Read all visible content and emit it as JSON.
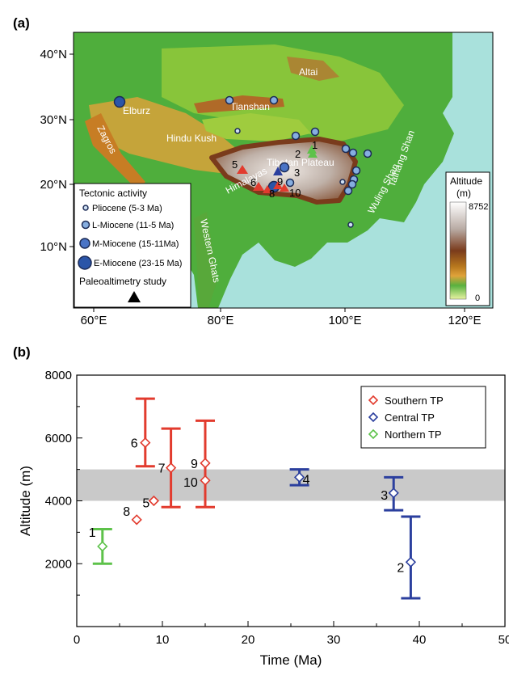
{
  "panel_a": {
    "label": "(a)",
    "lat_ticks": [
      "40°N",
      "30°N",
      "20°N",
      "10°N"
    ],
    "lon_ticks": [
      "60°E",
      "80°E",
      "100°E",
      "120°E"
    ],
    "place_names": [
      {
        "text": "Elburz"
      },
      {
        "text": "Zagros"
      },
      {
        "text": "Hindu Kush"
      },
      {
        "text": "Tianshan"
      },
      {
        "text": "Altai"
      },
      {
        "text": "Tibetan Plateau"
      },
      {
        "text": "Himalayas"
      },
      {
        "text": "Western Ghats"
      },
      {
        "text": "Wuling Shan"
      },
      {
        "text": "Taihang Shan"
      }
    ],
    "site_numbers": [
      "1",
      "2",
      "3",
      "5",
      "6",
      "9",
      "8",
      "10"
    ],
    "legend": {
      "title": "Tectonic activity",
      "items": [
        "Pliocene (5-3 Ma)",
        "L-Miocene (11-5 Ma)",
        "M-Miocene (15-11Ma)",
        "E-Miocene (23-15 Ma)"
      ],
      "paleo_label": "Paleoaltimetry study"
    },
    "colorbar": {
      "title": "Altitude",
      "unit": "(m)",
      "max": "8752",
      "min": "0"
    }
  },
  "panel_b": {
    "label": "(b)"
  },
  "chart_data": {
    "type": "scatter",
    "xlabel": "Time (Ma)",
    "ylabel": "Altitude (m)",
    "xlim": [
      0,
      50
    ],
    "ylim": [
      0,
      8000
    ],
    "x_ticks": [
      0,
      10,
      20,
      30,
      40,
      50
    ],
    "y_ticks": [
      2000,
      4000,
      6000,
      8000
    ],
    "shaded_band": [
      4000,
      5000
    ],
    "legend_position": "top-right",
    "colors": {
      "Southern TP": "#e23b2e",
      "Central TP": "#2b3f9e",
      "Northern TP": "#5dc24a",
      "band": "#c9c9c9"
    },
    "series": [
      {
        "name": "Southern TP",
        "points": [
          {
            "label": "6",
            "x": 8,
            "y": 5850,
            "low": 5100,
            "high": 7250
          },
          {
            "label": "7",
            "x": 11,
            "y": 5050,
            "low": 3800,
            "high": 6300
          },
          {
            "label": "9",
            "x": 15,
            "y": 5200,
            "low": 3800,
            "high": 6550
          },
          {
            "label": "10",
            "x": 15,
            "y": 4650,
            "low": null,
            "high": null
          },
          {
            "label": "5",
            "x": 9,
            "y": 4000,
            "low": null,
            "high": null
          },
          {
            "label": "8",
            "x": 7,
            "y": 3400,
            "low": null,
            "high": null
          }
        ]
      },
      {
        "name": "Central TP",
        "points": [
          {
            "label": "4",
            "x": 26,
            "y": 4750,
            "low": 4500,
            "high": 5000
          },
          {
            "label": "3",
            "x": 37,
            "y": 4250,
            "low": 3700,
            "high": 4750
          },
          {
            "label": "2",
            "x": 39,
            "y": 2050,
            "low": 900,
            "high": 3500
          }
        ]
      },
      {
        "name": "Northern TP",
        "points": [
          {
            "label": "1",
            "x": 3,
            "y": 2550,
            "low": 2000,
            "high": 3100
          }
        ]
      }
    ]
  }
}
